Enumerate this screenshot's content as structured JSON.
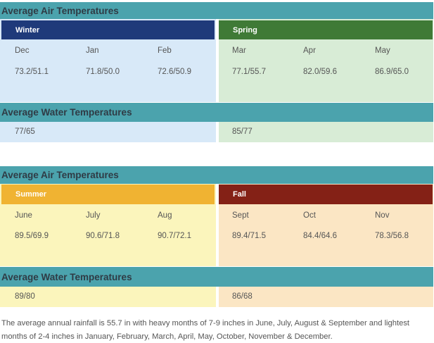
{
  "section1": {
    "air_title": "Average Air Temperatures",
    "water_title": "Average Water Temperatures",
    "winter": {
      "label": "Winter",
      "months": [
        "Dec",
        "Jan",
        "Feb"
      ],
      "temps": [
        "73.2/51.1",
        "71.8/50.0",
        "72.6/50.9"
      ],
      "water": "77/65"
    },
    "spring": {
      "label": "Spring",
      "months": [
        "Mar",
        "Apr",
        "May"
      ],
      "temps": [
        "77.1/55.7",
        "82.0/59.6",
        "86.9/65.0"
      ],
      "water": "85/77"
    }
  },
  "section2": {
    "air_title": "Average Air Temperatures",
    "water_title": "Average Water Temperatures",
    "summer": {
      "label": "Summer",
      "months": [
        "June",
        "July",
        "Aug"
      ],
      "temps": [
        "89.5/69.9",
        "90.6/71.8",
        "90.7/72.1"
      ],
      "water": "89/80"
    },
    "fall": {
      "label": "Fall",
      "months": [
        "Sept",
        "Oct",
        "Nov"
      ],
      "temps": [
        "89.4/71.5",
        "84.4/64.6",
        "78.3/56.8"
      ],
      "water": "86/68"
    }
  },
  "footnote": "The average annual rainfall is 55.7 in with heavy months of 7-9 inches in June, July, August & September and lightest months of 2-4 inches in January, February, March, April, May, October, November & December.",
  "colors": {
    "teal": "#4ba3ad",
    "winter": "#1f3a7a",
    "spring": "#3f7a36",
    "summer": "#f0b332",
    "fall": "#842116",
    "winter_bg": "#d8e9f8",
    "spring_bg": "#d8ecd6",
    "summer_bg": "#fbf5bc",
    "fall_bg": "#fbe6c4"
  }
}
